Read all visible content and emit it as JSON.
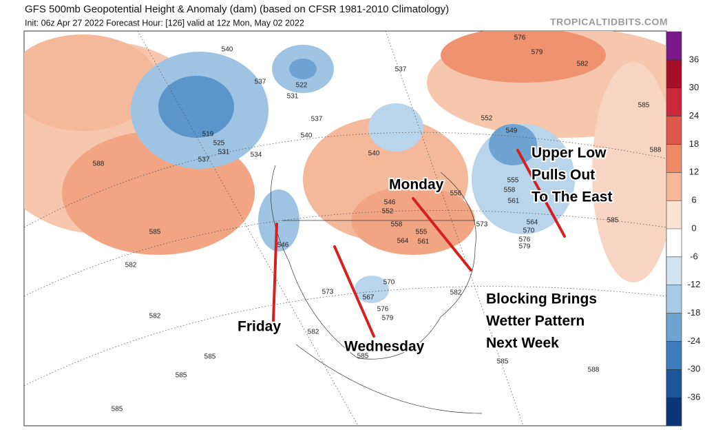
{
  "header": {
    "title": "GFS 500mb Geopotential Height & Anomaly (dam) (based on CFSR 1981-2010 Climatology)",
    "subtitle": "Init: 06z Apr 27 2022   Forecast Hour: [126]   valid at 12z Mon, May 02 2022",
    "site": "TROPICALTIDBITS.COM"
  },
  "annotations": [
    {
      "lines": [
        "Upper Low",
        "Pulls Out",
        "To The East"
      ]
    },
    {
      "lines": [
        "Monday"
      ]
    },
    {
      "lines": [
        "Blocking Brings",
        "Wetter Pattern",
        "Next Week"
      ]
    },
    {
      "lines": [
        "Friday"
      ]
    },
    {
      "lines": [
        "Wednesday"
      ]
    }
  ],
  "contour_labels": [
    540,
    522,
    537,
    531,
    537,
    576,
    579,
    582,
    585,
    588,
    519,
    525,
    531,
    537,
    534,
    537,
    540,
    540,
    549,
    552,
    555,
    558,
    561,
    564,
    570,
    576,
    579,
    573,
    585,
    588,
    585,
    582,
    582,
    585,
    585,
    585,
    546,
    552,
    558,
    564,
    561,
    555,
    546,
    573,
    567,
    570,
    576,
    579,
    582,
    585,
    582,
    585,
    588,
    556
  ],
  "colorbar": {
    "ticks": [
      36,
      30,
      24,
      18,
      12,
      6,
      0,
      -6,
      -12,
      -18,
      -24,
      -30,
      -36
    ]
  }
}
